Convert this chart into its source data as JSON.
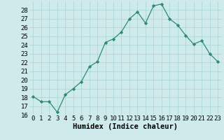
{
  "xlabel": "Humidex (Indice chaleur)",
  "x": [
    0,
    1,
    2,
    3,
    4,
    5,
    6,
    7,
    8,
    9,
    10,
    11,
    12,
    13,
    14,
    15,
    16,
    17,
    18,
    19,
    20,
    21,
    22,
    23
  ],
  "y": [
    18.1,
    17.5,
    17.5,
    16.3,
    18.3,
    19.0,
    19.8,
    21.5,
    22.1,
    24.3,
    24.7,
    25.5,
    27.0,
    27.8,
    26.5,
    28.5,
    28.7,
    27.0,
    26.3,
    25.1,
    24.1,
    24.5,
    23.0,
    22.1
  ],
  "line_color": "#2e8b72",
  "marker_color": "#2e8b72",
  "bg_color": "#ceeaea",
  "grid_color": "#a8d4d4",
  "ylim": [
    16,
    29
  ],
  "yticks": [
    16,
    17,
    18,
    19,
    20,
    21,
    22,
    23,
    24,
    25,
    26,
    27,
    28
  ],
  "tick_fontsize": 6.5,
  "xlabel_fontsize": 7.5
}
